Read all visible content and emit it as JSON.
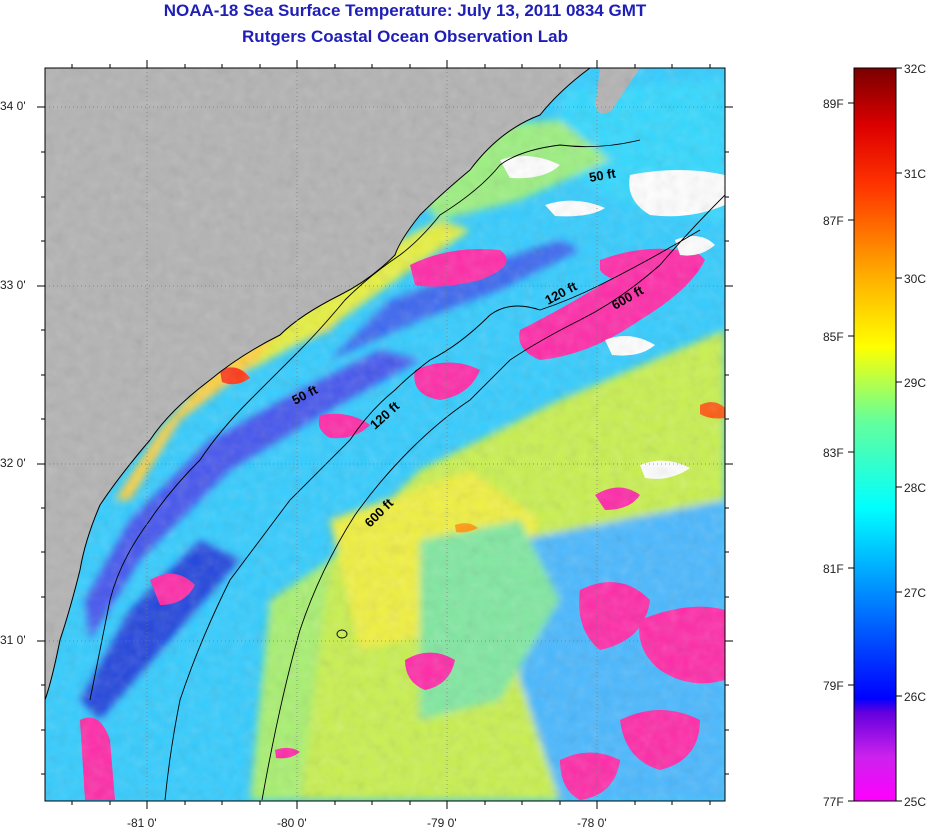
{
  "title": "NOAA-18 Sea Surface Temperature:  July 13, 2011 0834 GMT",
  "subtitle": "Rutgers Coastal Ocean Observation Lab",
  "lat_ticks": [
    "34 0'",
    "33 0'",
    "32 0'",
    "31 0'"
  ],
  "lon_ticks": [
    "-81 0'",
    "-80 0'",
    "-79 0'",
    "-78 0'"
  ],
  "isobaths": [
    {
      "label": "50 ft"
    },
    {
      "label": "50 ft"
    },
    {
      "label": "120 ft"
    },
    {
      "label": "120 ft"
    },
    {
      "label": "600 ft"
    },
    {
      "label": "600 ft"
    }
  ],
  "colorbar": {
    "celsius": [
      "32C",
      "31C",
      "30C",
      "29C",
      "28C",
      "27C",
      "26C",
      "25C"
    ],
    "fahrenheit": [
      "89F",
      "87F",
      "85F",
      "83F",
      "81F",
      "79F",
      "77F"
    ],
    "gradient": [
      "#ff00ff",
      "#8800dd",
      "#0000ff",
      "#0088ff",
      "#00ffff",
      "#66ff99",
      "#ffff00",
      "#ffaa00",
      "#ff3300",
      "#cc0000",
      "#7a0000"
    ]
  },
  "colors": {
    "land": "#b3b3b3",
    "cloud": "#ffffff",
    "title": "#1f1fb8"
  }
}
